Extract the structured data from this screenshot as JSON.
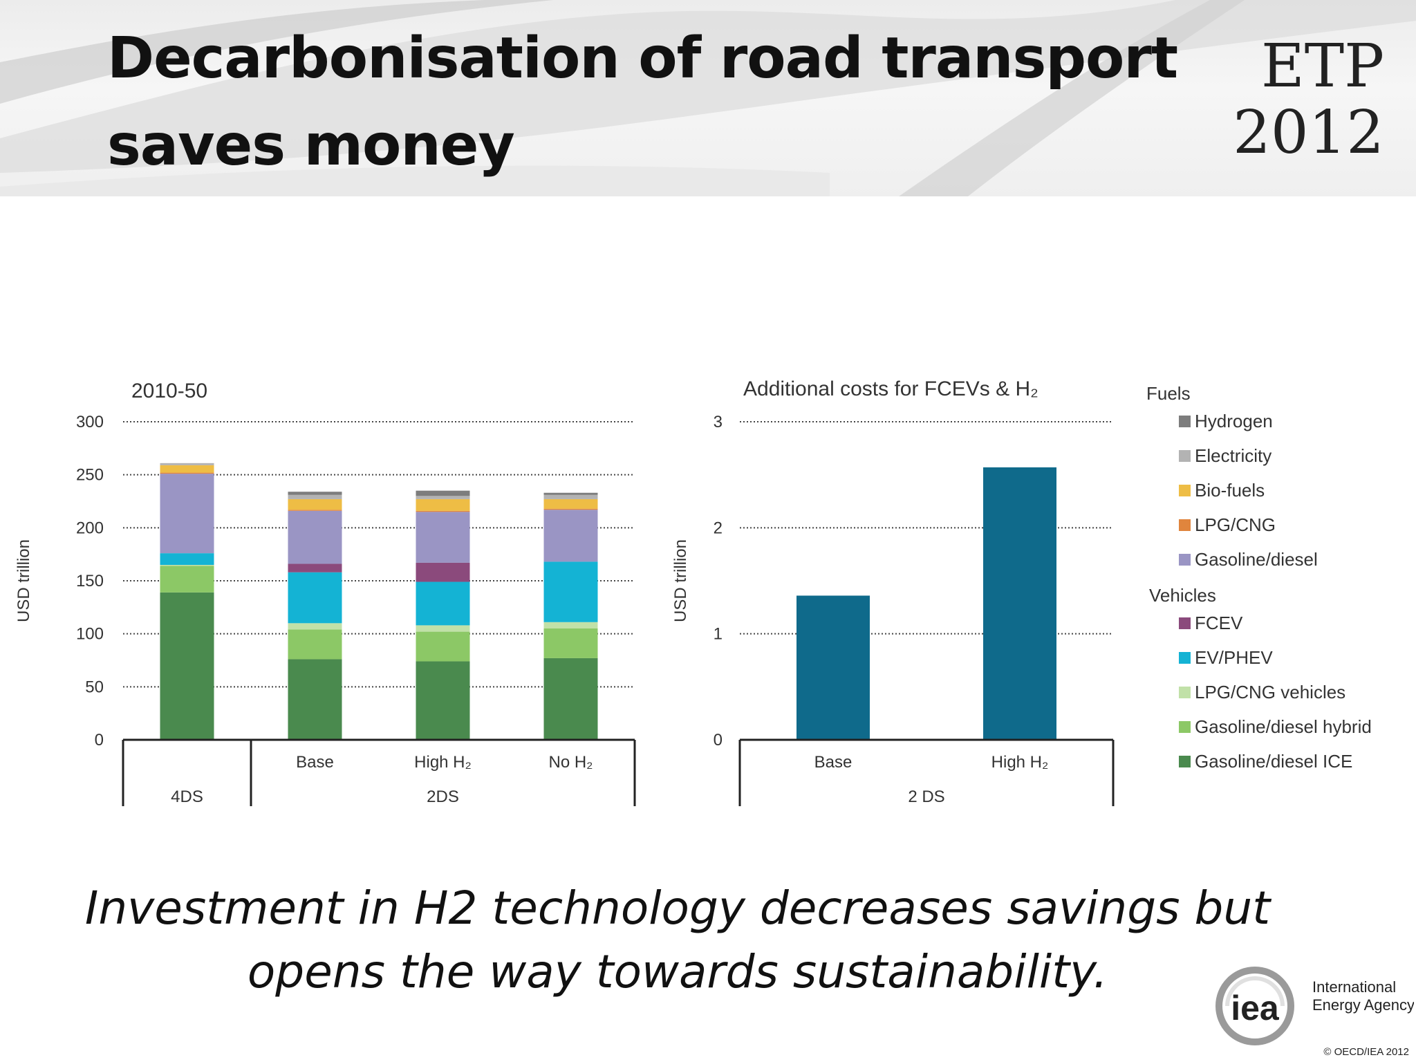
{
  "slide": {
    "title": "Decarbonisation of road transport saves money",
    "logo_top": "ETP",
    "logo_bottom": "2012",
    "caption_line1": "Investment in H2 technology decreases savings but",
    "caption_line2": "opens the way towards sustainability.",
    "agency_line1": "International",
    "agency_line2": "Energy Agency",
    "agency_mark": "iea",
    "copyright": "© OECD/IEA 2012"
  },
  "chart_data": [
    {
      "type": "bar",
      "stacked": true,
      "title": "2010-50",
      "ylabel": "USD trillion",
      "ylim": [
        0,
        300
      ],
      "yticks": [
        0,
        50,
        100,
        150,
        200,
        250,
        300
      ],
      "categories": [
        "",
        "Base",
        "High H₂",
        "No H₂"
      ],
      "groups": [
        {
          "label": "4DS",
          "categories": [
            0
          ]
        },
        {
          "label": "2DS",
          "categories": [
            1,
            2,
            3
          ]
        }
      ],
      "grid": true,
      "series": [
        {
          "name": "Gasoline/diesel ICE",
          "color": "#4a8a4e",
          "values": [
            139,
            76,
            74,
            77
          ]
        },
        {
          "name": "Gasoline/diesel hybrid",
          "color": "#8cc866",
          "values": [
            25,
            28,
            28,
            28
          ]
        },
        {
          "name": "LPG/CNG vehicles",
          "color": "#c1e1a8",
          "values": [
            1,
            6,
            6,
            6
          ]
        },
        {
          "name": "EV/PHEV",
          "color": "#14b3d4",
          "values": [
            11,
            48,
            41,
            57
          ]
        },
        {
          "name": "FCEV",
          "color": "#8b4a7c",
          "values": [
            0,
            8,
            18,
            0
          ]
        },
        {
          "name": "Gasoline/diesel",
          "color": "#9a95c4",
          "values": [
            75,
            50,
            48,
            49
          ]
        },
        {
          "name": "LPG/CNG",
          "color": "#e0853d",
          "values": [
            1,
            1,
            1,
            1
          ]
        },
        {
          "name": "Bio-fuels",
          "color": "#eebd45",
          "values": [
            7,
            10,
            11,
            9
          ]
        },
        {
          "name": "Electricity",
          "color": "#b3b3b3",
          "values": [
            2,
            4,
            3,
            4
          ]
        },
        {
          "name": "Hydrogen",
          "color": "#7d7d7d",
          "values": [
            0,
            3,
            5,
            2
          ]
        }
      ]
    },
    {
      "type": "bar",
      "title": "Additional costs for FCEVs & H₂",
      "ylabel": "USD trillion",
      "ylim": [
        0,
        3
      ],
      "yticks": [
        0,
        1,
        2,
        3
      ],
      "categories": [
        "Base",
        "High H₂"
      ],
      "groups": [
        {
          "label": "2 DS",
          "categories": [
            0,
            1
          ]
        }
      ],
      "grid": true,
      "values": [
        1.36,
        2.57
      ],
      "color": "#0f6a8b"
    }
  ],
  "legend": {
    "fuels_heading": "Fuels",
    "fuels": [
      {
        "label": "Hydrogen",
        "color": "#7d7d7d"
      },
      {
        "label": "Electricity",
        "color": "#b3b3b3"
      },
      {
        "label": "Bio-fuels",
        "color": "#eebd45"
      },
      {
        "label": "LPG/CNG",
        "color": "#e0853d"
      },
      {
        "label": "Gasoline/diesel",
        "color": "#9a95c4"
      }
    ],
    "vehicles_heading": "Vehicles",
    "vehicles": [
      {
        "label": "FCEV",
        "color": "#8b4a7c"
      },
      {
        "label": "EV/PHEV",
        "color": "#14b3d4"
      },
      {
        "label": "LPG/CNG vehicles",
        "color": "#c1e1a8"
      },
      {
        "label": "Gasoline/diesel hybrid",
        "color": "#8cc866"
      },
      {
        "label": "Gasoline/diesel ICE",
        "color": "#4a8a4e"
      }
    ]
  }
}
